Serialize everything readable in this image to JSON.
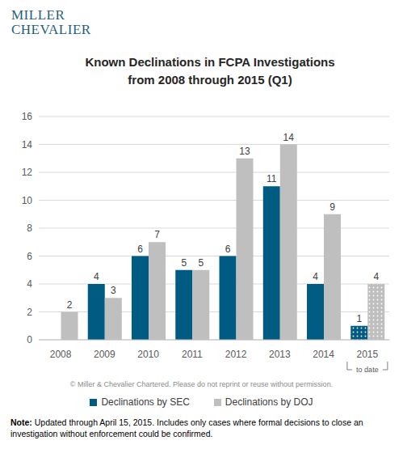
{
  "chart_data": {
    "type": "bar",
    "logo": [
      "MILLER",
      "CHEVALIER"
    ],
    "title": "Known Declinations in FCPA Investigations\nfrom 2008 through 2015 (Q1)",
    "categories": [
      "2008",
      "2009",
      "2010",
      "2011",
      "2012",
      "2013",
      "2014",
      "2015"
    ],
    "series": [
      {
        "name": "Declinations by SEC",
        "color": "#005b82",
        "values": [
          null,
          4,
          6,
          5,
          6,
          11,
          4,
          1
        ]
      },
      {
        "name": "Declinations by DOJ",
        "color": "#bfbfbf",
        "values": [
          2,
          3,
          7,
          5,
          13,
          14,
          9,
          4
        ]
      }
    ],
    "ylim": [
      0,
      16
    ],
    "yticks": [
      0,
      2,
      4,
      6,
      8,
      10,
      12,
      14,
      16
    ],
    "grid": true,
    "data_labels": true,
    "annotations": [
      {
        "category": "2015",
        "text": "to date"
      }
    ],
    "copyright": "© Miller & Chevalier Chartered. Please do not reprint or reuse without permission.",
    "note_label": "Note:",
    "note": "Updated through April 15, 2015. Includes only cases where formal decisions to close an investigation without enforcement could be confirmed."
  }
}
